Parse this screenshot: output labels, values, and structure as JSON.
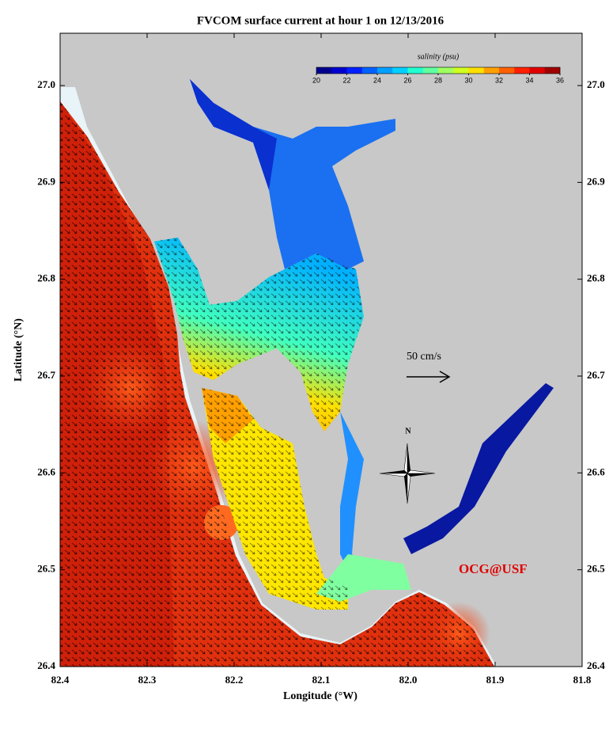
{
  "chart_data": {
    "type": "map",
    "title": "FVCOM surface current at hour 1 on 12/13/2016",
    "xlabel": "Longitude (°W)",
    "ylabel": "Latitude (°N)",
    "xlim": [
      82.4,
      81.8
    ],
    "ylim": [
      26.4,
      27.054
    ],
    "xticks": [
      82.4,
      82.3,
      82.2,
      82.1,
      {
        "value": 82,
        "label": "82.0"
      },
      81.9,
      81.8
    ],
    "yticks": [
      26.4,
      26.5,
      26.6,
      26.7,
      26.8,
      26.9,
      {
        "value": 27,
        "label": "27.0"
      }
    ],
    "colorbar": {
      "label": "salinity (psu)",
      "lim": [
        20,
        36
      ],
      "ticks": [
        20,
        22,
        24,
        26,
        28,
        30,
        32,
        34,
        36
      ],
      "colors": [
        "#00008f",
        "#0000d0",
        "#0020ff",
        "#0060ff",
        "#00a0ff",
        "#00d0ff",
        "#20ffd0",
        "#60ffa0",
        "#a0ff60",
        "#d0ff20",
        "#ffe000",
        "#ffa000",
        "#ff6000",
        "#ff2000",
        "#e00000",
        "#a00000"
      ]
    },
    "scale_label": "50 cm/s",
    "compass_label": "N",
    "credit": "OCG@USF"
  }
}
